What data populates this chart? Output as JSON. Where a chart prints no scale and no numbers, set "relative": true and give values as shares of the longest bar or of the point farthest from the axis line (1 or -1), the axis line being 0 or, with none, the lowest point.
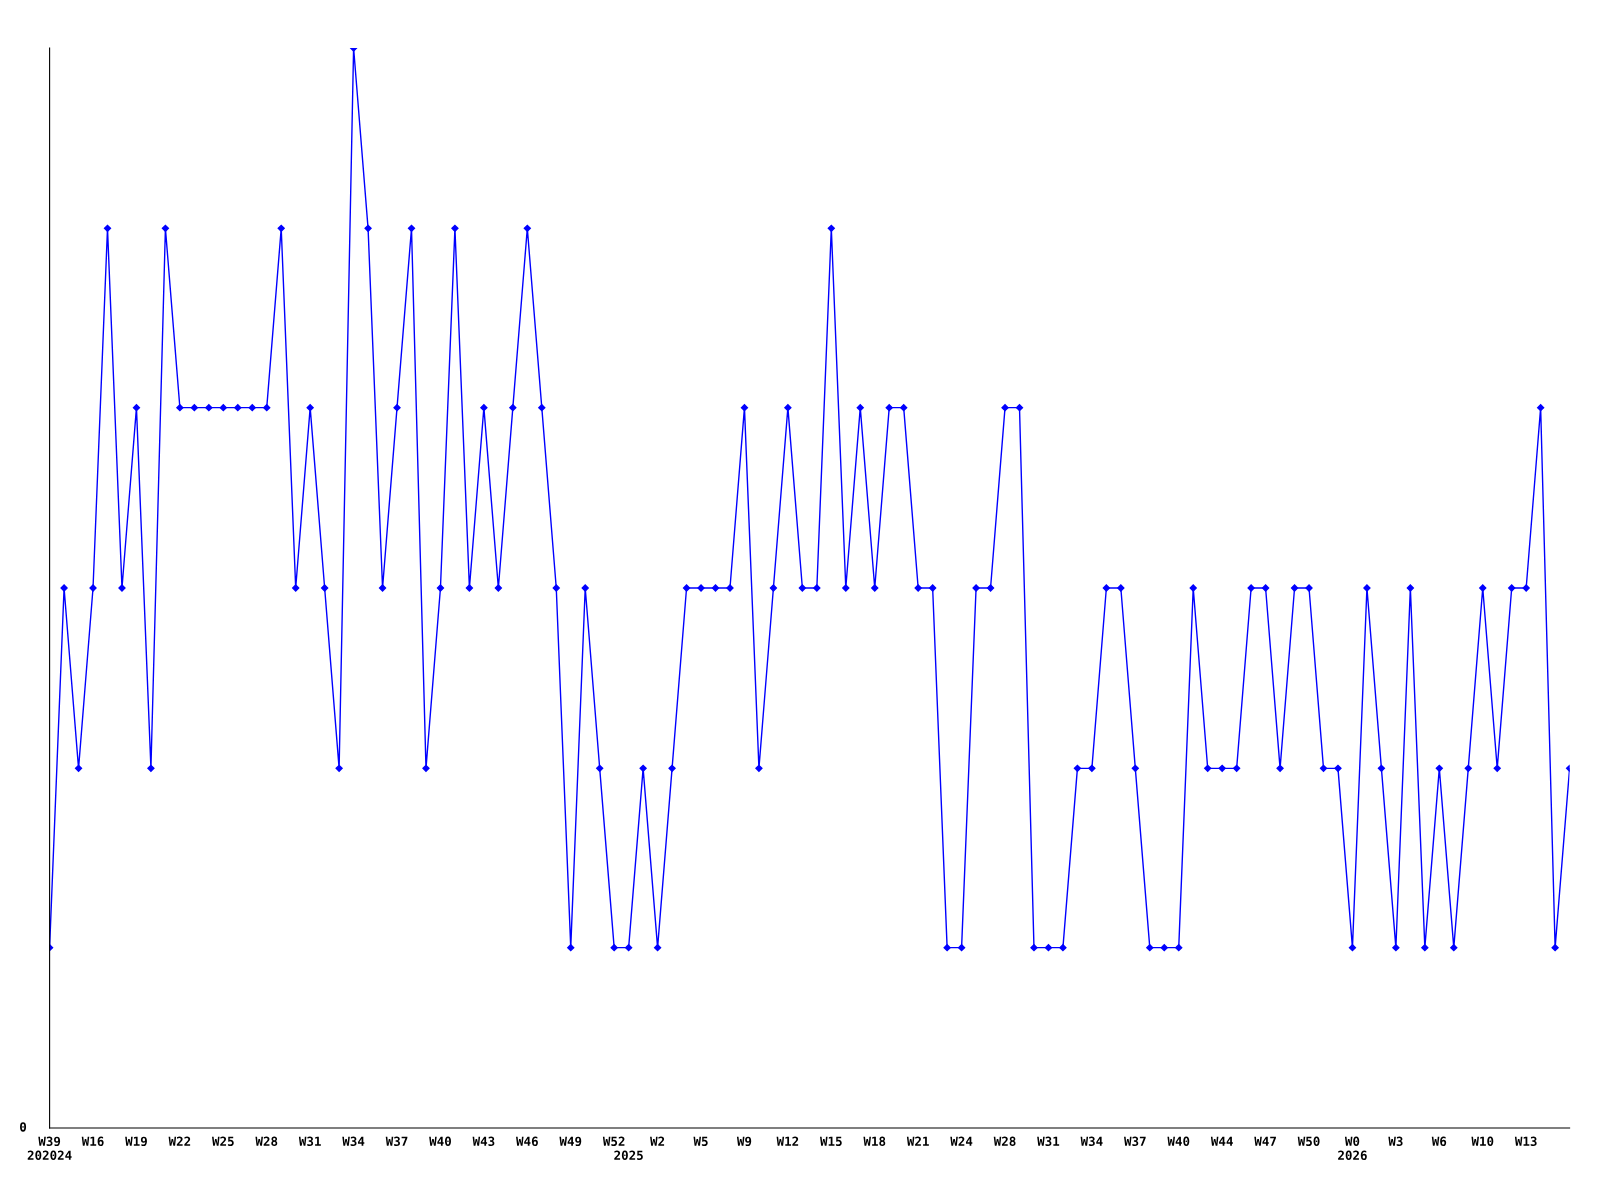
{
  "chart_data": {
    "type": "line",
    "relative": true,
    "marker": "diamond",
    "line_style": "solid",
    "grid": false,
    "legend": false,
    "categories": [
      "W39\n202024",
      null,
      null,
      "W16",
      null,
      null,
      "W19",
      null,
      null,
      "W22",
      null,
      null,
      "W25",
      null,
      null,
      "W28",
      null,
      null,
      "W31",
      null,
      null,
      "W34",
      null,
      null,
      "W37",
      null,
      null,
      "W40",
      null,
      null,
      "W43",
      null,
      null,
      "W46",
      null,
      null,
      "W49",
      null,
      null,
      "W52",
      "\n2025",
      null,
      "W2",
      null,
      null,
      "W5",
      null,
      null,
      "W9",
      null,
      null,
      "W12",
      null,
      null,
      "W15",
      null,
      null,
      "W18",
      null,
      null,
      "W21",
      null,
      null,
      "W24",
      null,
      null,
      "W28",
      null,
      null,
      "W31",
      null,
      null,
      "W34",
      null,
      null,
      "W37",
      null,
      null,
      "W40",
      null,
      null,
      "W44",
      null,
      null,
      "W47",
      null,
      null,
      "W50",
      null,
      null,
      "W0\n2026",
      null,
      null,
      "W3",
      null,
      null,
      "W6",
      null,
      null,
      "W10",
      null,
      null,
      "W13",
      null,
      null,
      null
    ],
    "series": [
      {
        "color": "#0000ff",
        "values": [
          0.167,
          0.5,
          0.333,
          0.5,
          0.833,
          0.5,
          0.667,
          0.333,
          0.833,
          0.667,
          0.667,
          0.667,
          0.667,
          0.667,
          0.667,
          0.667,
          0.833,
          0.5,
          0.667,
          0.5,
          0.333,
          1,
          0.833,
          0.5,
          0.667,
          0.833,
          0.333,
          0.5,
          0.833,
          0.5,
          0.667,
          0.5,
          0.667,
          0.833,
          0.667,
          0.5,
          0.167,
          0.5,
          0.333,
          0.167,
          0.167,
          0.333,
          0.167,
          0.333,
          0.5,
          0.5,
          0.5,
          0.5,
          0.667,
          0.333,
          0.5,
          0.667,
          0.5,
          0.5,
          0.833,
          0.5,
          0.667,
          0.5,
          0.667,
          0.667,
          0.5,
          0.5,
          0.167,
          0.167,
          0.5,
          0.5,
          0.667,
          0.667,
          0.167,
          0.167,
          0.167,
          0.333,
          0.333,
          0.5,
          0.5,
          0.333,
          0.167,
          0.167,
          0.167,
          0.5,
          0.333,
          0.333,
          0.333,
          0.5,
          0.5,
          0.333,
          0.5,
          0.5,
          0.333,
          0.333,
          0.167,
          0.5,
          0.333,
          0.167,
          0.5,
          0.167,
          0.333,
          0.167,
          0.333,
          0.5,
          0.333,
          0.5,
          0.5,
          0.667,
          0.167,
          0.333
        ]
      }
    ],
    "annotations": [
      "0"
    ]
  }
}
